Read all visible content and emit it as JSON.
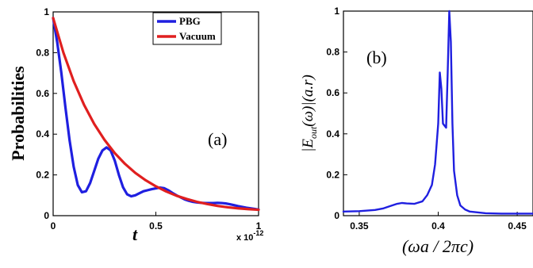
{
  "chart_data": [
    {
      "type": "line",
      "panel_label": "(a)",
      "xlabel": "t",
      "ylabel": "Probabilities",
      "x_multiplier": "x 10",
      "x_multiplier_exp": "-12",
      "xlim": [
        0,
        1
      ],
      "ylim": [
        0,
        1
      ],
      "xticks": [
        "0",
        "0.5",
        "1"
      ],
      "xtick_values": [
        0,
        0.5,
        1
      ],
      "yticks": [
        "0",
        "0.2",
        "0.4",
        "0.6",
        "0.8",
        "1"
      ],
      "ytick_values": [
        0,
        0.2,
        0.4,
        0.6,
        0.8,
        1
      ],
      "legend_position": "top-right",
      "series": [
        {
          "name": "PBG",
          "color": "#1f1fe0",
          "x": [
            0,
            0.02,
            0.04,
            0.06,
            0.08,
            0.1,
            0.12,
            0.14,
            0.16,
            0.18,
            0.2,
            0.22,
            0.24,
            0.26,
            0.28,
            0.3,
            0.32,
            0.34,
            0.36,
            0.38,
            0.4,
            0.42,
            0.44,
            0.46,
            0.48,
            0.5,
            0.52,
            0.54,
            0.56,
            0.58,
            0.6,
            0.62,
            0.64,
            0.66,
            0.68,
            0.7,
            0.72,
            0.74,
            0.76,
            0.78,
            0.8,
            0.82,
            0.84,
            0.86,
            0.88,
            0.9,
            0.92,
            0.94,
            0.96,
            0.98,
            1.0
          ],
          "y": [
            0.97,
            0.85,
            0.7,
            0.53,
            0.37,
            0.24,
            0.15,
            0.115,
            0.12,
            0.16,
            0.22,
            0.28,
            0.32,
            0.335,
            0.32,
            0.27,
            0.2,
            0.14,
            0.105,
            0.095,
            0.1,
            0.11,
            0.12,
            0.125,
            0.13,
            0.134,
            0.138,
            0.135,
            0.125,
            0.112,
            0.1,
            0.09,
            0.08,
            0.073,
            0.068,
            0.065,
            0.063,
            0.062,
            0.062,
            0.062,
            0.063,
            0.062,
            0.06,
            0.056,
            0.052,
            0.047,
            0.043,
            0.039,
            0.036,
            0.033,
            0.03
          ]
        },
        {
          "name": "Vacuum",
          "color": "#e01f1f",
          "x": [
            0,
            0.05,
            0.1,
            0.15,
            0.2,
            0.25,
            0.3,
            0.35,
            0.4,
            0.45,
            0.5,
            0.55,
            0.6,
            0.65,
            0.7,
            0.75,
            0.8,
            0.85,
            0.9,
            0.95,
            1.0
          ],
          "y": [
            0.97,
            0.8,
            0.66,
            0.545,
            0.45,
            0.372,
            0.307,
            0.254,
            0.21,
            0.174,
            0.144,
            0.119,
            0.098,
            0.082,
            0.068,
            0.057,
            0.048,
            0.041,
            0.036,
            0.032,
            0.029
          ]
        }
      ]
    },
    {
      "type": "line",
      "panel_label": "(b)",
      "xlabel": "(ωa / 2πc)",
      "ylabel_main": "|E",
      "ylabel_sub": "out",
      "ylabel_rest": "(ω)|(a.r)",
      "xlim": [
        0.34,
        0.46
      ],
      "ylim": [
        0,
        1
      ],
      "xticks": [
        "0.35",
        "0.4",
        "0.45"
      ],
      "xtick_values": [
        0.35,
        0.4,
        0.45
      ],
      "yticks": [
        "0",
        "0.2",
        "0.4",
        "0.6",
        "0.8",
        "1"
      ],
      "ytick_values": [
        0,
        0.2,
        0.4,
        0.6,
        0.8,
        1
      ],
      "series": [
        {
          "color": "#1f1fe0",
          "x": [
            0.34,
            0.35,
            0.36,
            0.365,
            0.37,
            0.374,
            0.377,
            0.38,
            0.385,
            0.39,
            0.393,
            0.396,
            0.398,
            0.4,
            0.401,
            0.402,
            0.403,
            0.404,
            0.405,
            0.406,
            0.407,
            0.408,
            0.409,
            0.41,
            0.412,
            0.414,
            0.417,
            0.42,
            0.43,
            0.44,
            0.45,
            0.46
          ],
          "y": [
            0.02,
            0.022,
            0.028,
            0.035,
            0.048,
            0.058,
            0.062,
            0.06,
            0.058,
            0.07,
            0.1,
            0.15,
            0.25,
            0.45,
            0.7,
            0.62,
            0.45,
            0.44,
            0.43,
            0.7,
            1.0,
            0.85,
            0.45,
            0.22,
            0.1,
            0.05,
            0.03,
            0.02,
            0.012,
            0.01,
            0.01,
            0.01
          ]
        }
      ]
    }
  ],
  "legend_label_pbg": "PBG",
  "legend_label_vacuum": "Vacuum"
}
